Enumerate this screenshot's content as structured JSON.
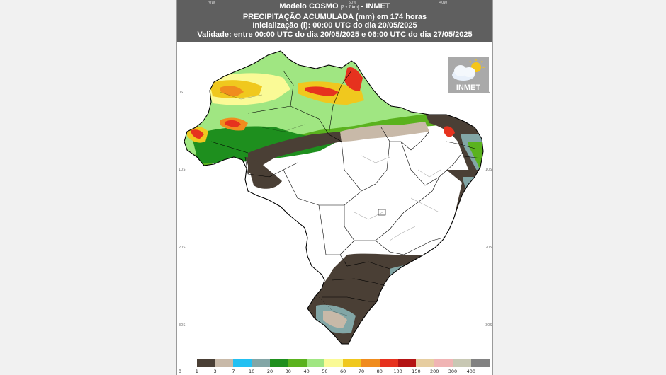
{
  "header": {
    "line1_prefix": "Modelo COSMO ",
    "line1_small": "[7 x 7 km]",
    "line1_suffix": " - INMET",
    "line2": "PRECIPITAÇÃO ACUMULADA (mm) em 174 horas",
    "line3": "Inicialização (i): 00:00 UTC do dia 20/05/2025",
    "line4": "Validade: entre 00:00 UTC do dia 20/05/2025 e 06:00 UTC do dia 27/05/2025"
  },
  "axes": {
    "top": [
      "70W",
      "50W",
      "40W"
    ],
    "left": [
      "0S",
      "10S",
      "20S",
      "30S"
    ],
    "right": [
      "0S",
      "10S",
      "20S",
      "30S"
    ]
  },
  "logo": {
    "text": "INMET",
    "icon": "cloud-sun-icon"
  },
  "legend": {
    "labels": [
      "0",
      "1",
      "3",
      "7",
      "10",
      "20",
      "30",
      "40",
      "50",
      "60",
      "70",
      "80",
      "100",
      "150",
      "200",
      "300",
      "400"
    ],
    "colors": [
      "#ffffff",
      "#4a3f35",
      "#c8b9a8",
      "#22c0f2",
      "#82a6a6",
      "#1e8f1e",
      "#5ab21e",
      "#a0e682",
      "#fafa96",
      "#f0c81e",
      "#f08c1e",
      "#e6321e",
      "#b41414",
      "#e6cda0",
      "#f0b4b4",
      "#c8c8b4",
      "#828282"
    ]
  }
}
